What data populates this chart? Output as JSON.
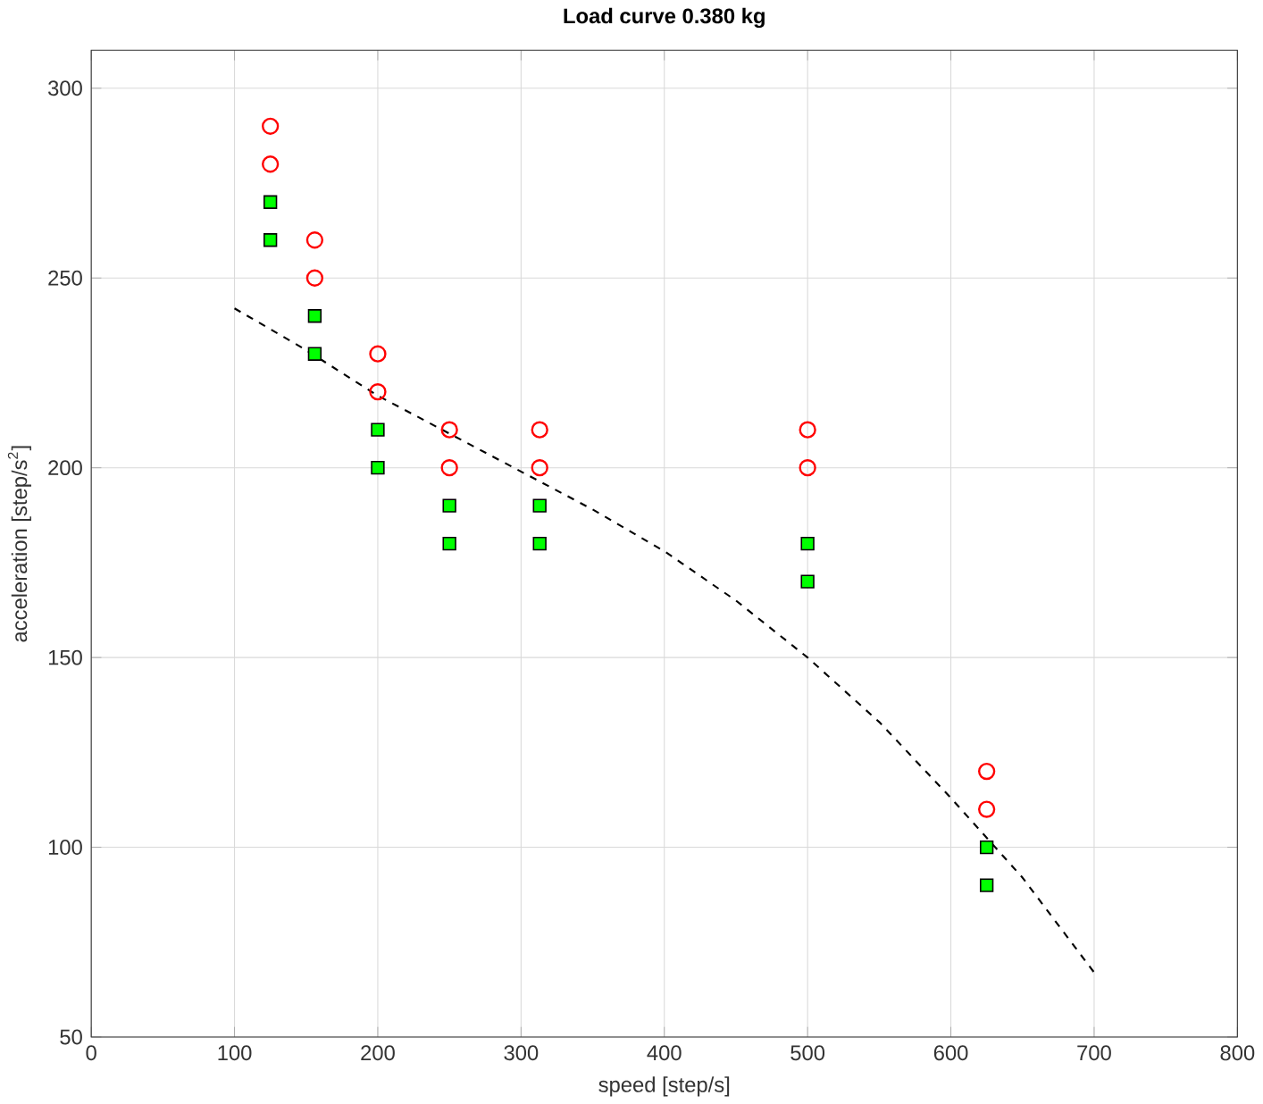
{
  "chart_data": {
    "type": "scatter",
    "title": "Load curve 0.380 kg",
    "xlabel": "speed [step/s]",
    "ylabel": "acceleration [step/s$^{2}$]",
    "xlim": [
      0,
      800
    ],
    "xticks": [
      0,
      100,
      200,
      300,
      400,
      500,
      600,
      700,
      800
    ],
    "ylim": [
      50,
      310
    ],
    "yticks": [
      50,
      100,
      150,
      200,
      250,
      300
    ],
    "grid": true,
    "series": [
      {
        "marker": "circle",
        "color": "#ff0000",
        "x": [
          125,
          125,
          156,
          156,
          200,
          200,
          250,
          250,
          313,
          313,
          500,
          500,
          625,
          625
        ],
        "values": [
          290,
          280,
          260,
          250,
          230,
          220,
          210,
          200,
          210,
          200,
          210,
          200,
          120,
          110
        ]
      },
      {
        "marker": "square",
        "color": "#00ff00",
        "x": [
          125,
          125,
          156,
          156,
          200,
          200,
          250,
          250,
          313,
          313,
          500,
          500,
          625,
          625
        ],
        "values": [
          270,
          260,
          240,
          230,
          210,
          200,
          190,
          180,
          190,
          180,
          180,
          170,
          100,
          90
        ]
      },
      {
        "type": "line",
        "line_style": "dashed",
        "marker": "none",
        "color": "#000000",
        "x": [
          100,
          150,
          200,
          250,
          300,
          350,
          400,
          450,
          500,
          550,
          600,
          650,
          700
        ],
        "values": [
          242,
          231,
          219,
          209,
          199,
          189,
          178,
          165,
          150,
          133,
          113,
          92,
          67
        ]
      }
    ]
  }
}
